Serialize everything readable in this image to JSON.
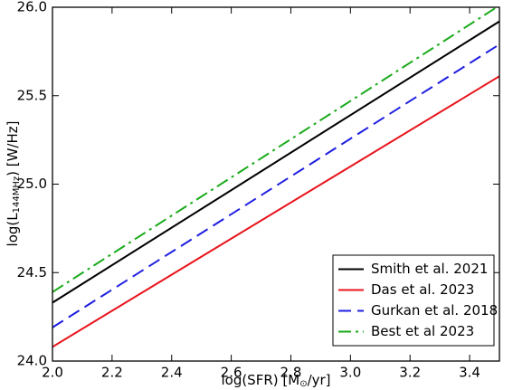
{
  "chart_data": {
    "type": "line",
    "xlabel": {
      "main": "log(SFR) [M",
      "sub": "⊙",
      "rest": "/yr]"
    },
    "ylabel": {
      "main": "log(L",
      "sub": "144MHz",
      "rest": ") [W/Hz]"
    },
    "x": [
      2.0,
      3.5
    ],
    "series": [
      {
        "name": "Smith et al. 2021",
        "color": "#000000",
        "dash": "solid",
        "values": [
          24.33,
          25.92
        ]
      },
      {
        "name": "Das et al. 2023",
        "color": "#e8141c",
        "dash": "solid",
        "values": [
          24.08,
          25.61
        ]
      },
      {
        "name": "Gurkan et al. 2018",
        "color": "#1f1fe0",
        "dash": "dashed",
        "values": [
          24.19,
          25.79
        ]
      },
      {
        "name": "Best et al 2023",
        "color": "#1aaa1a",
        "dash": "dashdot",
        "values": [
          24.39,
          26.01
        ]
      }
    ],
    "xlim": [
      2.0,
      3.5
    ],
    "ylim": [
      24.0,
      26.0
    ],
    "xticks": [
      {
        "value": 2.0,
        "label": "2.0"
      },
      2.2,
      2.4,
      2.6,
      2.8,
      {
        "value": 3.0,
        "label": "3.0"
      },
      3.2,
      3.4
    ],
    "yticks": [
      {
        "value": 24.0,
        "label": "24.0"
      },
      24.5,
      {
        "value": 25.0,
        "label": "25.0"
      },
      25.5,
      {
        "value": 26.0,
        "label": "26.0"
      }
    ],
    "legend": "lower right"
  }
}
